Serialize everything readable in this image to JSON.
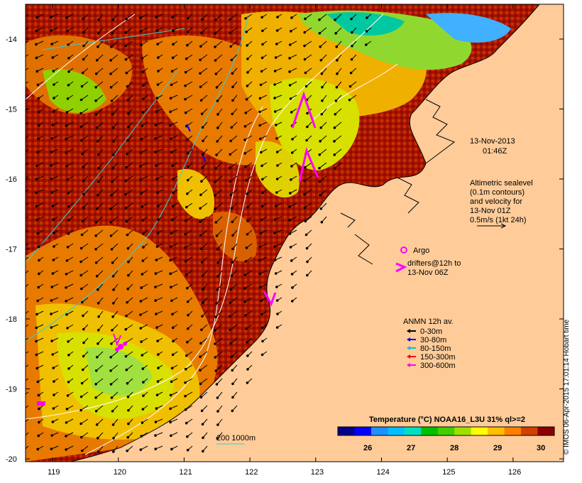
{
  "date_label": "13-Nov-2013",
  "time_label": "01:46Z",
  "altimetry_note": [
    "Altimetric sealevel",
    "(0.1m contours)",
    "and velocity for",
    "13-Nov 01Z",
    "0.5m/s (1kt 24h)"
  ],
  "argo_label": "Argo",
  "drifters_label": [
    "drifters@12h to",
    "13-Nov 06Z"
  ],
  "anmn_title": "ANMN 12h av.",
  "anmn_legend": [
    {
      "label": "0-30m",
      "color": "#000000"
    },
    {
      "label": "30-80m",
      "color": "#0000ff"
    },
    {
      "label": "80-150m",
      "color": "#00c8c8"
    },
    {
      "label": "150-300m",
      "color": "#ff0000"
    },
    {
      "label": "300-600m",
      "color": "#ff00ff"
    }
  ],
  "colorbar": {
    "title": "Temperature (°C) NOAA16_L3U 31% ql>=2",
    "ticks": [
      "26",
      "27",
      "28",
      "29",
      "30"
    ],
    "colors": [
      "#00008b",
      "#0000ff",
      "#1e90ff",
      "#00c0ff",
      "#00e0c0",
      "#00c000",
      "#40d000",
      "#a0e000",
      "#ffff00",
      "#ffc000",
      "#ff8000",
      "#d04000",
      "#8b0000"
    ]
  },
  "scale_label": "200  1000m",
  "x_ticks": [
    "119",
    "120",
    "121",
    "122",
    "123",
    "124",
    "125",
    "126"
  ],
  "y_ticks": [
    "-14",
    "-15",
    "-16",
    "-17",
    "-18",
    "-19",
    "-20"
  ],
  "credit": "© IMOS 06-Apr-2015 17:01:14 Hobart time",
  "colors": {
    "land": "#ffcc99",
    "ocean_warm": "#a01000",
    "ocean_mid": "#e07000"
  }
}
